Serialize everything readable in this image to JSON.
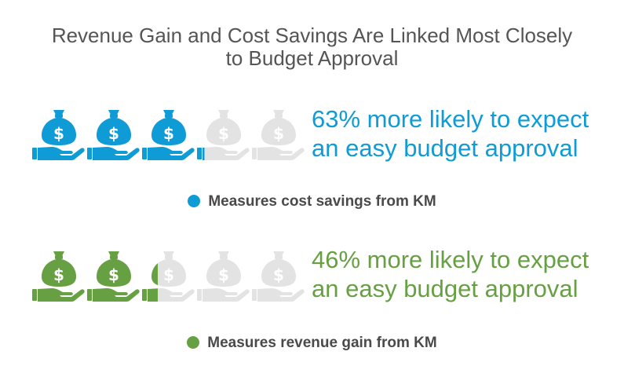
{
  "chart_data": {
    "type": "pictogram",
    "title": "Revenue Gain and Cost Savings Are Linked Most Closely to Budget Approval",
    "title_lines": [
      "Revenue Gain and Cost Savings Are Linked Most Closely",
      "to Budget Approval"
    ],
    "icon": "money-bag-in-hand-icon",
    "icons_total": 5,
    "inactive_color": "#e3e3e3",
    "series": [
      {
        "name": "Measures cost savings from KM",
        "value": 63,
        "statement_lines": [
          "63% more likely to expect",
          "an easy budget approval"
        ],
        "color": "#0f9bd6"
      },
      {
        "name": "Measures revenue gain from KM",
        "value": 46,
        "statement_lines": [
          "46% more likely to expect",
          "an easy budget approval"
        ],
        "color": "#67a043"
      }
    ]
  }
}
